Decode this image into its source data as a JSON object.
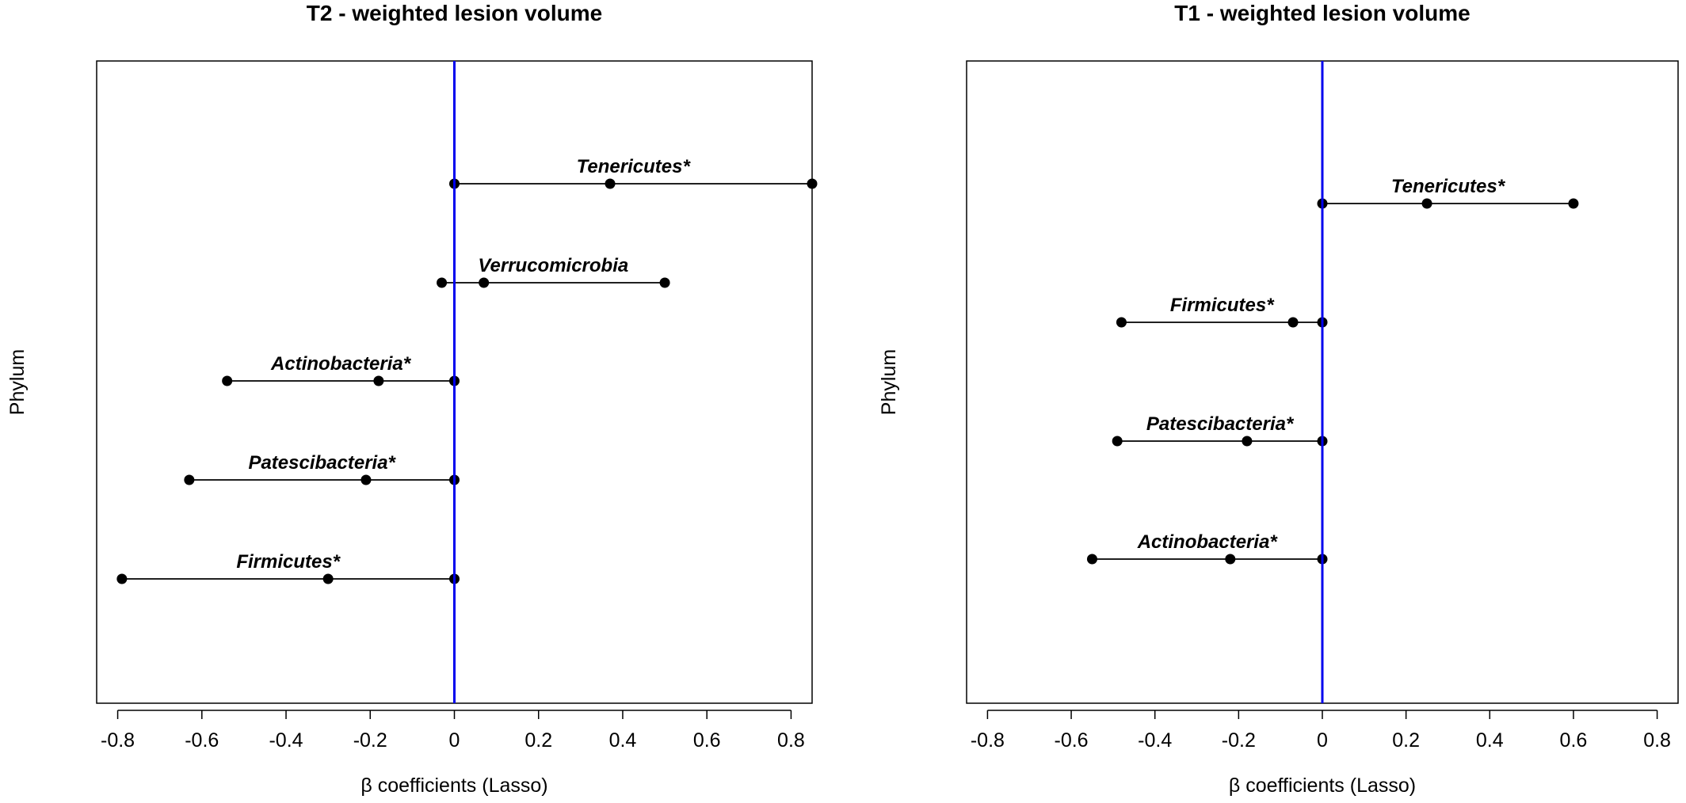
{
  "chart_data": [
    {
      "type": "scatter",
      "subtype": "forest-interval",
      "title": "T2 - weighted lesion volume",
      "xlabel": "β coefficients (Lasso)",
      "ylabel": "Phylum",
      "xlim": [
        -0.85,
        0.85
      ],
      "xticks": [
        -0.8,
        -0.6,
        -0.4,
        -0.2,
        0,
        0.2,
        0.4,
        0.6,
        0.8
      ],
      "xtick_labels": [
        "-0.8",
        "-0.6",
        "-0.4",
        "-0.2",
        "0",
        "0.2",
        "0.4",
        "0.6",
        "0.8"
      ],
      "reference_line": {
        "x": 0,
        "color": "#0000ee"
      },
      "rows": [
        {
          "label": "Tenericutes*",
          "low": 0.0,
          "mid": 0.37,
          "high": 0.85
        },
        {
          "label": "Verrucomicrobia",
          "low": -0.03,
          "mid": 0.07,
          "high": 0.5
        },
        {
          "label": "Actinobacteria*",
          "low": -0.54,
          "mid": -0.18,
          "high": 0.0
        },
        {
          "label": "Patescibacteria*",
          "low": -0.63,
          "mid": -0.21,
          "high": 0.0
        },
        {
          "label": "Firmicutes*",
          "low": -0.79,
          "mid": -0.3,
          "high": 0.0
        }
      ]
    },
    {
      "type": "scatter",
      "subtype": "forest-interval",
      "title": "T1 - weighted lesion volume",
      "xlabel": "β coefficients (Lasso)",
      "ylabel": "Phylum",
      "xlim": [
        -0.85,
        0.85
      ],
      "xticks": [
        -0.8,
        -0.6,
        -0.4,
        -0.2,
        0,
        0.2,
        0.4,
        0.6,
        0.8
      ],
      "xtick_labels": [
        "-0.8",
        "-0.6",
        "-0.4",
        "-0.2",
        "0",
        "0.2",
        "0.4",
        "0.6",
        "0.8"
      ],
      "reference_line": {
        "x": 0,
        "color": "#0000ee"
      },
      "rows": [
        {
          "label": "Tenericutes*",
          "low": 0.0,
          "mid": 0.25,
          "high": 0.6
        },
        {
          "label": "Firmicutes*",
          "low": -0.48,
          "mid": -0.07,
          "high": 0.0
        },
        {
          "label": "Patescibacteria*",
          "low": -0.49,
          "mid": -0.18,
          "high": 0.0
        },
        {
          "label": "Actinobacteria*",
          "low": -0.55,
          "mid": -0.22,
          "high": 0.0
        }
      ]
    }
  ]
}
